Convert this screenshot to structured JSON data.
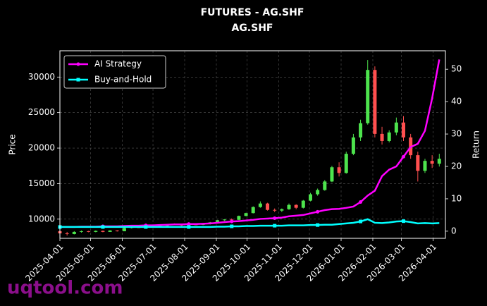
{
  "chart_data": {
    "type": "candlestick",
    "title": "FUTURES - AG.SHF",
    "subtitle": "AG.SHF",
    "y_label": "Price",
    "y2_label": "Return",
    "watermark": "uqtool.com",
    "x": [
      "2025-04-01",
      "2025-04-08",
      "2025-04-15",
      "2025-04-22",
      "2025-04-29",
      "2025-05-06",
      "2025-05-13",
      "2025-05-20",
      "2025-05-27",
      "2025-06-03",
      "2025-06-10",
      "2025-06-17",
      "2025-06-24",
      "2025-07-01",
      "2025-07-08",
      "2025-07-15",
      "2025-07-22",
      "2025-07-29",
      "2025-08-05",
      "2025-08-12",
      "2025-08-19",
      "2025-08-26",
      "2025-09-02",
      "2025-09-09",
      "2025-09-16",
      "2025-09-23",
      "2025-09-30",
      "2025-10-07",
      "2025-10-14",
      "2025-10-21",
      "2025-10-28",
      "2025-11-04",
      "2025-11-11",
      "2025-11-18",
      "2025-11-25",
      "2025-12-02",
      "2025-12-09",
      "2025-12-16",
      "2025-12-23",
      "2025-12-30",
      "2026-01-06",
      "2026-01-13",
      "2026-01-20",
      "2026-01-27",
      "2026-02-03",
      "2026-02-10",
      "2026-02-17",
      "2026-02-24",
      "2026-03-03",
      "2026-03-10",
      "2026-03-17",
      "2026-03-24",
      "2026-03-31",
      "2026-04-07"
    ],
    "open": [
      8300,
      8000,
      7900,
      8200,
      8300,
      8200,
      8350,
      8200,
      8400,
      8300,
      8750,
      8850,
      8800,
      8850,
      8950,
      9050,
      9250,
      9200,
      9150,
      9250,
      9200,
      9300,
      9550,
      9850,
      9950,
      9900,
      10450,
      10850,
      11700,
      12200,
      11300,
      11200,
      11400,
      12000,
      11600,
      12600,
      13500,
      14100,
      15300,
      17300,
      16500,
      19200,
      21500,
      23500,
      31000,
      22000,
      21000,
      22200,
      23600,
      21500,
      19000,
      16800,
      18200,
      17800
    ],
    "high": [
      8400,
      8200,
      8300,
      8400,
      8350,
      8400,
      8400,
      8450,
      8450,
      8800,
      8900,
      8950,
      8900,
      9000,
      9100,
      9300,
      9400,
      9250,
      9300,
      9300,
      9350,
      9600,
      9900,
      10000,
      10100,
      10500,
      10900,
      11800,
      12500,
      12300,
      11500,
      11500,
      12200,
      12100,
      12700,
      13700,
      14300,
      15500,
      17500,
      18000,
      19500,
      22000,
      24000,
      32400,
      31500,
      23000,
      22500,
      24300,
      24500,
      22000,
      19500,
      18500,
      19000,
      19200
    ],
    "low": [
      7900,
      7700,
      7850,
      8100,
      8150,
      8150,
      8150,
      8200,
      8250,
      8300,
      8700,
      8750,
      8700,
      8800,
      8900,
      9000,
      9150,
      9050,
      9100,
      9150,
      9150,
      9250,
      9500,
      9750,
      9800,
      9850,
      10400,
      10800,
      11600,
      11200,
      11000,
      11000,
      11300,
      11400,
      11500,
      12500,
      13300,
      14000,
      15200,
      16000,
      16400,
      19000,
      21000,
      23300,
      21500,
      20500,
      20800,
      21800,
      21000,
      18500,
      15300,
      16500,
      17200,
      17400
    ],
    "close": [
      8000,
      7900,
      8200,
      8300,
      8200,
      8350,
      8200,
      8400,
      8300,
      8750,
      8850,
      8800,
      8850,
      8950,
      9050,
      9250,
      9200,
      9150,
      9250,
      9200,
      9300,
      9550,
      9850,
      9950,
      9900,
      10450,
      10850,
      11700,
      12200,
      11300,
      11200,
      11400,
      12000,
      11600,
      12600,
      13500,
      14100,
      15300,
      17300,
      16500,
      19200,
      21500,
      23500,
      31000,
      22000,
      21000,
      22200,
      23600,
      21500,
      19000,
      16800,
      18200,
      17800,
      18500
    ],
    "up_color": "#4de34d",
    "down_color": "#ff4f4f",
    "series": [
      {
        "name": "AI Strategy",
        "color": "#ff00ff",
        "axis": "y2",
        "marker": "circle",
        "values": [
          1.3,
          1.3,
          1.3,
          1.4,
          1.4,
          1.4,
          1.5,
          1.5,
          1.5,
          1.6,
          1.7,
          1.7,
          1.8,
          1.8,
          1.9,
          2.0,
          2.1,
          2.1,
          2.2,
          2.2,
          2.3,
          2.4,
          2.6,
          2.8,
          3.0,
          3.1,
          3.3,
          3.5,
          3.8,
          3.9,
          4.0,
          4.2,
          4.6,
          4.8,
          5.0,
          5.5,
          6.0,
          6.5,
          6.8,
          6.9,
          7.2,
          7.6,
          9.0,
          11.0,
          12.5,
          17.0,
          19.0,
          20.0,
          23.0,
          26.0,
          27.0,
          31.0,
          41.0,
          53.0
        ]
      },
      {
        "name": "Buy-and-Hold",
        "color": "#00ffff",
        "axis": "y2",
        "marker": "square",
        "values": [
          1.3,
          1.3,
          1.3,
          1.3,
          1.3,
          1.3,
          1.3,
          1.3,
          1.3,
          1.3,
          1.3,
          1.3,
          1.3,
          1.3,
          1.3,
          1.3,
          1.3,
          1.3,
          1.3,
          1.3,
          1.3,
          1.3,
          1.4,
          1.4,
          1.5,
          1.5,
          1.6,
          1.6,
          1.7,
          1.7,
          1.7,
          1.7,
          1.8,
          1.8,
          1.8,
          1.9,
          1.9,
          2.0,
          2.0,
          2.2,
          2.4,
          2.6,
          3.0,
          3.7,
          2.6,
          2.5,
          2.7,
          3.0,
          3.1,
          2.8,
          2.4,
          2.5,
          2.4,
          2.5
        ]
      }
    ],
    "xlim": [
      "2025-04-01",
      "2026-04-13"
    ],
    "xticks": [
      "2025-04-01",
      "2025-05-01",
      "2025-06-01",
      "2025-07-01",
      "2025-08-01",
      "2025-09-01",
      "2025-10-01",
      "2025-11-01",
      "2025-12-01",
      "2026-01-01",
      "2026-02-01",
      "2026-03-01",
      "2026-04-01"
    ],
    "ylim": [
      7300,
      33700
    ],
    "yticks": [
      10000,
      15000,
      20000,
      25000,
      30000
    ],
    "y2lim": [
      -2.2,
      55.7
    ],
    "y2ticks": [
      0,
      10,
      20,
      30,
      40,
      50
    ],
    "grid": true,
    "legend": "upper left"
  }
}
